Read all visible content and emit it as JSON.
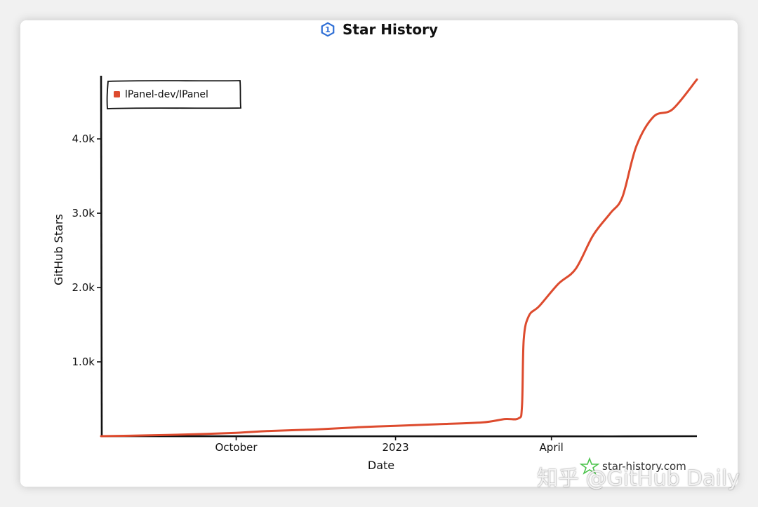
{
  "chart_data": {
    "type": "line",
    "title": "Star History",
    "xlabel": "Date",
    "ylabel": "GitHub Stars",
    "x_tick_labels": [
      "October",
      "2023",
      "April"
    ],
    "y_tick_labels": [
      "1.0k",
      "2.0k",
      "3.0k",
      "4.0k"
    ],
    "y_ticks": [
      1000,
      2000,
      3000,
      4000
    ],
    "ylim": [
      0,
      4850
    ],
    "xlim": [
      "2022-07-15",
      "2023-06-24"
    ],
    "x_tick_dates": [
      "2022-10-01",
      "2023-01-01",
      "2023-04-01"
    ],
    "legend_position": "top-left",
    "grid": false,
    "series": [
      {
        "name": "lPanel-dev/lPanel",
        "color": "#dd4b2e",
        "points": [
          [
            "2022-07-15",
            0
          ],
          [
            "2022-08-10",
            10
          ],
          [
            "2022-09-05",
            25
          ],
          [
            "2022-10-01",
            45
          ],
          [
            "2022-10-20",
            70
          ],
          [
            "2022-11-15",
            90
          ],
          [
            "2022-12-10",
            120
          ],
          [
            "2023-01-01",
            140
          ],
          [
            "2023-01-25",
            160
          ],
          [
            "2023-02-20",
            185
          ],
          [
            "2023-03-05",
            230
          ],
          [
            "2023-03-13",
            240
          ],
          [
            "2023-03-15",
            400
          ],
          [
            "2023-03-16",
            1300
          ],
          [
            "2023-03-19",
            1620
          ],
          [
            "2023-03-25",
            1750
          ],
          [
            "2023-04-05",
            2050
          ],
          [
            "2023-04-15",
            2250
          ],
          [
            "2023-04-25",
            2700
          ],
          [
            "2023-05-05",
            3000
          ],
          [
            "2023-05-12",
            3220
          ],
          [
            "2023-05-20",
            3900
          ],
          [
            "2023-05-30",
            4300
          ],
          [
            "2023-06-10",
            4400
          ],
          [
            "2023-06-24",
            4800
          ]
        ]
      }
    ]
  },
  "watermark": {
    "site": "star-history.com",
    "overlay": "知乎 @GitHub Daily"
  },
  "colors": {
    "line": "#dd4b2e",
    "logo": "#2f6fd6",
    "watermark_star": "#4cc34c"
  }
}
